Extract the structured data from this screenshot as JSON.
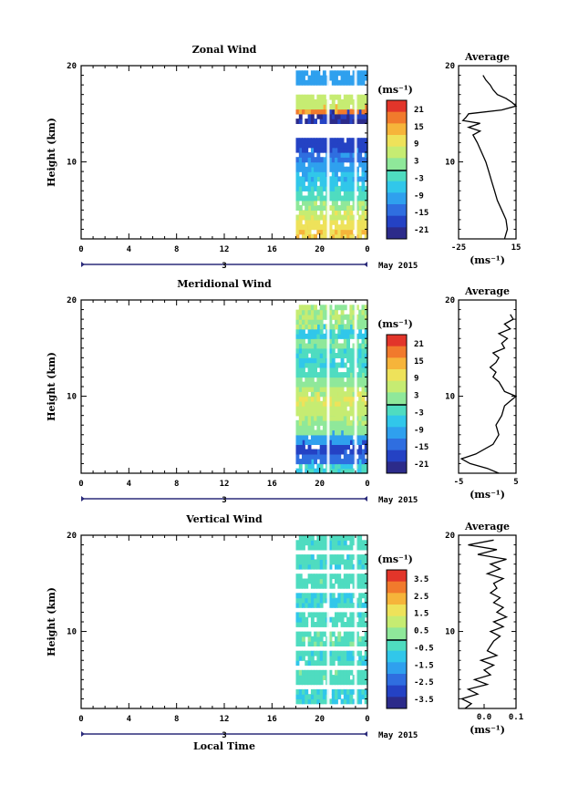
{
  "x_axis_label": "Local Time",
  "chart_data": [
    {
      "type": "heatmap",
      "title": "Zonal Wind",
      "ylabel": "Height (km)",
      "y_ticks": [
        "20",
        "10"
      ],
      "ylim": [
        2,
        20
      ],
      "x_ticks": [
        "0",
        "4",
        "8",
        "12",
        "16",
        "20",
        "0"
      ],
      "xlim": [
        0,
        24
      ],
      "date_label": "3",
      "month_label": "May 2015",
      "data_time_range": [
        18.0,
        24.0
      ],
      "colorbar": {
        "unit": "(ms⁻¹)",
        "ticks": [
          "21",
          "15",
          "9",
          "3",
          "-3",
          "-9",
          "-15",
          "-21"
        ],
        "range": [
          -24,
          24
        ]
      },
      "rows": [
        {
          "h": 2.5,
          "v": 12
        },
        {
          "h": 3.5,
          "v": 10
        },
        {
          "h": 4.5,
          "v": 7
        },
        {
          "h": 5.5,
          "v": 3
        },
        {
          "h": 6.5,
          "v": -2
        },
        {
          "h": 7.5,
          "v": -5
        },
        {
          "h": 8.5,
          "v": -7
        },
        {
          "h": 9.5,
          "v": -10
        },
        {
          "h": 10.5,
          "v": -13
        },
        {
          "h": 11.5,
          "v": -18
        },
        {
          "h": 14.5,
          "v": -20
        },
        {
          "h": 15.5,
          "v": 17
        },
        {
          "h": 16.0,
          "v": 6
        },
        {
          "h": 18.5,
          "v": -10
        }
      ],
      "average": {
        "title": "Average",
        "xlabel": "(ms⁻¹)",
        "x_ticks": [
          "-25",
          "15"
        ],
        "xlim": [
          -25,
          15
        ],
        "y_ticks": [
          "20",
          "10"
        ],
        "heights": [
          2,
          3,
          4,
          5,
          6,
          7,
          8,
          9,
          10,
          11,
          12,
          12.8,
          13.2,
          13.6,
          14,
          14.3,
          14.6,
          15,
          15.4,
          15.8,
          16.2,
          16.6,
          17,
          17.5,
          18,
          18.5,
          19
        ],
        "values": [
          7,
          9,
          8,
          5,
          2,
          0,
          -2,
          -4,
          -6,
          -9,
          -12,
          -15,
          -10,
          -18,
          -10,
          -22,
          -20,
          -18,
          5,
          15,
          12,
          8,
          2,
          -1,
          -3,
          -6,
          -8
        ]
      }
    },
    {
      "type": "heatmap",
      "title": "Meridional Wind",
      "ylabel": "Height (km)",
      "y_ticks": [
        "20",
        "10"
      ],
      "ylim": [
        2,
        20
      ],
      "x_ticks": [
        "0",
        "4",
        "8",
        "12",
        "16",
        "20",
        "0"
      ],
      "xlim": [
        0,
        24
      ],
      "date_label": "3",
      "month_label": "May 2015",
      "data_time_range": [
        18.0,
        24.0
      ],
      "colorbar": {
        "unit": "(ms⁻¹)",
        "ticks": [
          "21",
          "15",
          "9",
          "3",
          "-3",
          "-9",
          "-15",
          "-21"
        ],
        "range": [
          -24,
          24
        ]
      },
      "rows": [
        {
          "h": 2.5,
          "v": -4
        },
        {
          "h": 3.5,
          "v": -14
        },
        {
          "h": 4.5,
          "v": -18
        },
        {
          "h": 5.5,
          "v": -10
        },
        {
          "h": 6.5,
          "v": 2
        },
        {
          "h": 7.5,
          "v": 4
        },
        {
          "h": 8.5,
          "v": 6
        },
        {
          "h": 9.5,
          "v": 8
        },
        {
          "h": 10.5,
          "v": 5
        },
        {
          "h": 11.5,
          "v": 2
        },
        {
          "h": 12.5,
          "v": -2
        },
        {
          "h": 13.5,
          "v": -4
        },
        {
          "h": 14.5,
          "v": -3
        },
        {
          "h": 15.5,
          "v": 1
        },
        {
          "h": 16.5,
          "v": -5
        },
        {
          "h": 17.5,
          "v": 3
        },
        {
          "h": 18.5,
          "v": 4
        }
      ],
      "average": {
        "title": "Average",
        "xlabel": "(ms⁻¹)",
        "x_ticks": [
          "-5",
          "5"
        ],
        "xlim": [
          -5,
          5
        ],
        "y_ticks": [
          "20",
          "10"
        ],
        "heights": [
          2,
          2.5,
          3,
          3.5,
          4,
          5,
          6,
          7,
          8,
          9,
          9.5,
          10,
          10.5,
          11,
          11.5,
          12,
          12.5,
          13,
          13.5,
          14,
          14.5,
          15,
          15.5,
          16,
          16.5,
          17,
          17.5,
          18,
          18.5
        ],
        "values": [
          2,
          0,
          -3,
          -4.5,
          -2,
          1,
          2,
          1.5,
          2.5,
          3,
          4,
          5,
          3,
          2.5,
          2,
          1,
          1.5,
          0.5,
          1.5,
          2,
          1,
          3,
          2.5,
          3.5,
          2,
          4,
          3,
          4.5,
          4
        ]
      }
    },
    {
      "type": "heatmap",
      "title": "Vertical Wind",
      "ylabel": "Height (km)",
      "y_ticks": [
        "20",
        "10"
      ],
      "ylim": [
        2,
        20
      ],
      "x_ticks": [
        "0",
        "4",
        "8",
        "12",
        "16",
        "20",
        "0"
      ],
      "xlim": [
        0,
        24
      ],
      "date_label": "3",
      "month_label": "May 2015",
      "data_time_range": [
        18.0,
        24.0
      ],
      "colorbar": {
        "unit": "(ms⁻¹)",
        "ticks": [
          "3.5",
          "2.5",
          "1.5",
          "0.5",
          "-0.5",
          "-1.5",
          "-2.5",
          "-3.5"
        ],
        "range": [
          -4,
          4
        ]
      },
      "rows": [
        {
          "h": 3.0,
          "v": -0.6
        },
        {
          "h": 5.0,
          "v": -0.3
        },
        {
          "h": 7.0,
          "v": -0.5
        },
        {
          "h": 9.0,
          "v": -0.2
        },
        {
          "h": 11.0,
          "v": -0.4
        },
        {
          "h": 13.0,
          "v": -0.6
        },
        {
          "h": 15.0,
          "v": -0.3
        },
        {
          "h": 17.0,
          "v": -0.5
        },
        {
          "h": 19.0,
          "v": -0.4
        }
      ],
      "average": {
        "title": "Average",
        "xlabel": "(ms⁻¹)",
        "x_ticks": [
          "0.0",
          "0.1"
        ],
        "xlim": [
          -0.08,
          0.1
        ],
        "y_ticks": [
          "20",
          "10"
        ],
        "heights": [
          2,
          2.5,
          3,
          3.5,
          4,
          4.5,
          5,
          5.5,
          6,
          6.5,
          7,
          7.5,
          8,
          8.5,
          9,
          9.5,
          10,
          10.5,
          11,
          11.5,
          12,
          12.5,
          13,
          13.5,
          14,
          14.5,
          15,
          15.5,
          16,
          16.5,
          17,
          17.5,
          18,
          18.5,
          19,
          19.5
        ],
        "values": [
          -0.06,
          -0.04,
          -0.07,
          -0.02,
          -0.05,
          0.01,
          -0.03,
          0.02,
          0.0,
          0.03,
          -0.01,
          0.04,
          0.01,
          0.02,
          0.03,
          0.05,
          0.02,
          0.06,
          0.03,
          0.07,
          0.04,
          0.06,
          0.03,
          0.05,
          0.02,
          0.04,
          0.03,
          0.06,
          0.01,
          0.05,
          0.02,
          0.07,
          -0.02,
          0.04,
          -0.05,
          0.03
        ]
      }
    }
  ]
}
